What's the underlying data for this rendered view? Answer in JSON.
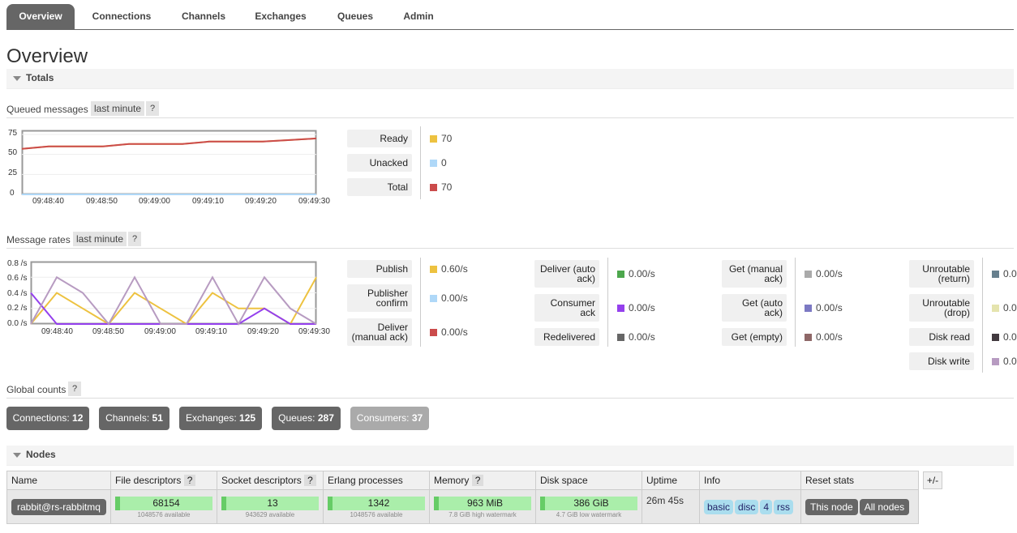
{
  "nav": {
    "tabs": [
      "Overview",
      "Connections",
      "Channels",
      "Exchanges",
      "Queues",
      "Admin"
    ],
    "active": "Overview"
  },
  "page_title": "Overview",
  "totals": {
    "section_label": "Totals",
    "queued": {
      "title": "Queued messages",
      "range": "last minute",
      "help": "?",
      "y_ticks": [
        "75",
        "50",
        "25",
        "0"
      ],
      "x_ticks": [
        "09:48:40",
        "09:48:50",
        "09:49:00",
        "09:49:10",
        "09:49:20",
        "09:49:30"
      ],
      "legend": [
        {
          "label": "Ready",
          "value": "70",
          "color": "#edc240"
        },
        {
          "label": "Unacked",
          "value": "0",
          "color": "#afd8f8"
        },
        {
          "label": "Total",
          "value": "70",
          "color": "#cb4b4b"
        }
      ]
    },
    "rates": {
      "title": "Message rates",
      "range": "last minute",
      "help": "?",
      "y_ticks": [
        "0.8 /s",
        "0.6 /s",
        "0.4 /s",
        "0.2 /s",
        "0.0 /s"
      ],
      "x_ticks": [
        "09:48:40",
        "09:48:50",
        "09:49:00",
        "09:49:10",
        "09:49:20",
        "09:49:30"
      ],
      "col1": [
        {
          "label": "Publish",
          "value": "0.60/s",
          "color": "#edc240"
        },
        {
          "label": "Publisher confirm",
          "value": "0.00/s",
          "color": "#afd8f8"
        },
        {
          "label": "Deliver (manual ack)",
          "value": "0.00/s",
          "color": "#cb4b4b"
        }
      ],
      "col2": [
        {
          "label": "Deliver (auto ack)",
          "value": "0.00/s",
          "color": "#4da74d"
        },
        {
          "label": "Consumer ack",
          "value": "0.00/s",
          "color": "#9440ed"
        },
        {
          "label": "Redelivered",
          "value": "0.00/s",
          "color": "#666666"
        }
      ],
      "col3": [
        {
          "label": "Get (manual ack)",
          "value": "0.00/s",
          "color": "#aaaaaa"
        },
        {
          "label": "Get (auto ack)",
          "value": "0.00/s",
          "color": "#7c79c3"
        },
        {
          "label": "Get (empty)",
          "value": "0.00/s",
          "color": "#8e6767"
        }
      ],
      "col4": [
        {
          "label": "Unroutable (return)",
          "value": "0.0",
          "color": "#67808e"
        },
        {
          "label": "Unroutable (drop)",
          "value": "0.0",
          "color": "#e5e4ae"
        },
        {
          "label": "Disk read",
          "value": "0.0",
          "color": "#423a3f"
        },
        {
          "label": "Disk write",
          "value": "0.0",
          "color": "#b79bc1"
        }
      ]
    },
    "global": {
      "title": "Global counts",
      "help": "?",
      "counts": [
        {
          "label": "Connections:",
          "value": "12"
        },
        {
          "label": "Channels:",
          "value": "51"
        },
        {
          "label": "Exchanges:",
          "value": "125"
        },
        {
          "label": "Queues:",
          "value": "287"
        },
        {
          "label": "Consumers:",
          "value": "37"
        }
      ]
    }
  },
  "chart_data": [
    {
      "type": "line",
      "title": "Queued messages",
      "x": [
        "09:48:35",
        "09:48:40",
        "09:48:45",
        "09:48:50",
        "09:48:55",
        "09:49:00",
        "09:49:05",
        "09:49:10",
        "09:49:15",
        "09:49:20",
        "09:49:25",
        "09:49:30"
      ],
      "series": [
        {
          "name": "Ready",
          "values": [
            57,
            60,
            60,
            60,
            63,
            63,
            63,
            66,
            66,
            66,
            68,
            70
          ]
        },
        {
          "name": "Unacked",
          "values": [
            0,
            0,
            0,
            0,
            0,
            0,
            0,
            0,
            0,
            0,
            0,
            0
          ]
        },
        {
          "name": "Total",
          "values": [
            57,
            60,
            60,
            60,
            63,
            63,
            63,
            66,
            66,
            66,
            68,
            70
          ]
        }
      ],
      "ylim": [
        0,
        80
      ]
    },
    {
      "type": "line",
      "title": "Message rates",
      "x": [
        "09:48:35",
        "09:48:40",
        "09:48:45",
        "09:48:50",
        "09:48:55",
        "09:49:00",
        "09:49:05",
        "09:49:10",
        "09:49:15",
        "09:49:20",
        "09:49:25",
        "09:49:30"
      ],
      "series": [
        {
          "name": "Publish",
          "values": [
            0.0,
            0.4,
            0.2,
            0.0,
            0.4,
            0.2,
            0.0,
            0.4,
            0.2,
            0.2,
            0.0,
            0.6
          ]
        },
        {
          "name": "Consumer ack",
          "values": [
            0.4,
            0.0,
            0.0,
            0.0,
            0.0,
            0.0,
            0.0,
            0.0,
            0.0,
            0.2,
            0.0,
            0.0
          ]
        },
        {
          "name": "Disk write",
          "values": [
            0.0,
            0.6,
            0.4,
            0.0,
            0.6,
            0.0,
            0.0,
            0.6,
            0.0,
            0.6,
            0.2,
            0.0
          ]
        }
      ],
      "ylim": [
        0,
        0.8
      ]
    }
  ],
  "nodes": {
    "section_label": "Nodes",
    "columns": [
      "Name",
      "File descriptors",
      "Socket descriptors",
      "Erlang processes",
      "Memory",
      "Disk space",
      "Uptime",
      "Info",
      "Reset stats"
    ],
    "col_help": "?",
    "plusminus": "+/-",
    "row": {
      "name": "rabbit@rs-rabbitmq",
      "fd": "68154",
      "fd_sub": "1048576 available",
      "sd": "13",
      "sd_sub": "943629 available",
      "ep": "1342",
      "ep_sub": "1048576 available",
      "mem": "963 MiB",
      "mem_sub": "7.8 GiB high watermark",
      "disk": "386 GiB",
      "disk_sub": "4.7 GiB low watermark",
      "uptime": "26m 45s",
      "info": [
        "basic",
        "disc",
        "4",
        "rss"
      ],
      "reset": [
        "This node",
        "All nodes"
      ]
    }
  }
}
